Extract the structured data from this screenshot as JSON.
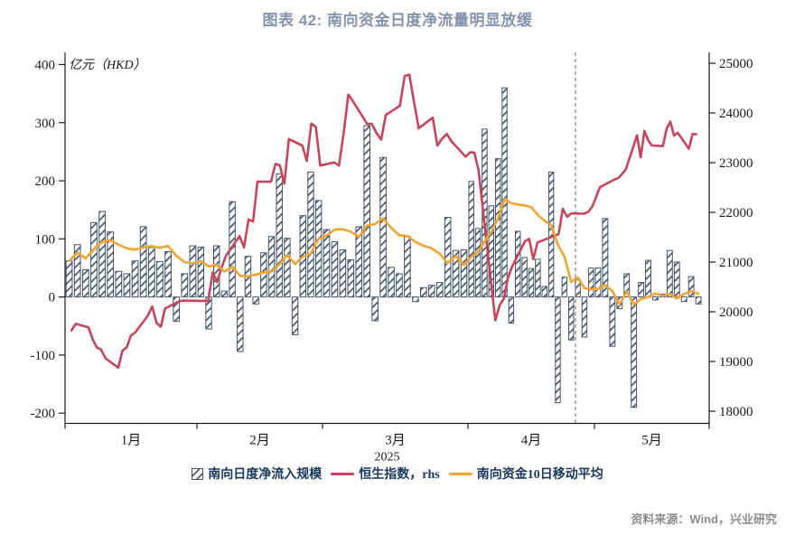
{
  "title": "图表 42: 南向资金日度净流量明显放缓",
  "source": "资料来源：Wind，兴业研究",
  "colors": {
    "title": "#8494AD",
    "bar_navy": "#44546A",
    "hsi_red": "#C5455C",
    "ma_orange": "#F3A332",
    "dashed_gray": "#808080",
    "axis_black": "#1a1a1a",
    "legend_text": "#17375E",
    "source_gray": "#8C8C8C"
  },
  "legend": [
    {
      "label": "南向日度净流入规模",
      "marker": "hatched-square"
    },
    {
      "label": "恒生指数，rhs",
      "marker": "red-line"
    },
    {
      "label": "南向资金10日移动平均",
      "marker": "orange-line"
    }
  ],
  "chart_data": {
    "type": "bar+line",
    "unit_label": "亿元（HKD）",
    "year_label": "2025",
    "left_axis": {
      "ticks": [
        400,
        300,
        200,
        100,
        0,
        -100,
        -200
      ],
      "range": [
        -200,
        400
      ]
    },
    "right_axis": {
      "ticks": [
        25000,
        24000,
        23000,
        22000,
        21000,
        20000,
        19000,
        18000
      ],
      "range": [
        18000,
        25000
      ]
    },
    "bars_series_name": "南向日度净流入规模",
    "hsi_series_name": "恒生指数，rhs",
    "ma_series_name": "南向资金10日移动平均",
    "ma_window": 10,
    "months": [
      {
        "label": "1月",
        "days_in_month": 31,
        "bars": [
          62,
          90,
          47,
          128,
          147,
          112,
          44,
          40,
          62,
          121,
          85,
          61,
          78,
          -42,
          40,
          88
        ]
      },
      {
        "label": "2月",
        "days_in_month": 28,
        "bars": [
          86,
          -55,
          88,
          10,
          164,
          -94,
          70,
          -12,
          76,
          104,
          212,
          101,
          -65,
          140,
          215,
          166
        ]
      },
      {
        "label": "3月",
        "days_in_month": 31,
        "bars": [
          116,
          95,
          81,
          64,
          121,
          295,
          -41,
          240,
          51,
          40,
          104,
          -8,
          16,
          20,
          25,
          137,
          80,
          81
        ]
      },
      {
        "label": "4月",
        "days_in_month": 30,
        "bars": [
          199,
          118,
          289,
          157,
          238,
          360,
          -45,
          113,
          68,
          49,
          65,
          18,
          215,
          -182,
          34,
          -74,
          30,
          -69,
          50
        ]
      },
      {
        "label": "5月",
        "days_in_month": 31,
        "bars": [
          50,
          135,
          -85,
          -20,
          40,
          -190,
          25,
          63,
          -5,
          5,
          80,
          60,
          -8,
          35,
          -12,
          null
        ]
      }
    ],
    "hsi_points": [
      {
        "month_index": 0,
        "pts": [
          [
            2,
            19623
          ],
          [
            3,
            19760
          ],
          [
            6,
            19688
          ],
          [
            7,
            19447
          ],
          [
            8,
            19279
          ],
          [
            9,
            19240
          ],
          [
            10,
            19064
          ],
          [
            13,
            18874
          ],
          [
            14,
            19219
          ],
          [
            15,
            19286
          ],
          [
            16,
            19523
          ],
          [
            17,
            19584
          ],
          [
            20,
            19926
          ],
          [
            21,
            20106
          ],
          [
            22,
            19778
          ],
          [
            23,
            19700
          ],
          [
            24,
            20066
          ],
          [
            27,
            20197
          ],
          [
            28,
            20225
          ]
        ]
      },
      {
        "month_index": 1,
        "pts": [
          [
            3,
            20217
          ],
          [
            4,
            20790
          ],
          [
            5,
            20597
          ],
          [
            6,
            20891
          ],
          [
            7,
            21133
          ],
          [
            10,
            21521
          ],
          [
            11,
            21295
          ],
          [
            12,
            21857
          ],
          [
            13,
            21814
          ],
          [
            14,
            22620
          ],
          [
            17,
            22616
          ],
          [
            18,
            22977
          ],
          [
            19,
            22944
          ],
          [
            20,
            22577
          ],
          [
            21,
            23477
          ],
          [
            24,
            23342
          ],
          [
            25,
            23034
          ],
          [
            26,
            23787
          ],
          [
            27,
            23718
          ],
          [
            28,
            22941
          ]
        ]
      },
      {
        "month_index": 2,
        "pts": [
          [
            3,
            23006
          ],
          [
            4,
            22942
          ],
          [
            5,
            23594
          ],
          [
            6,
            24370
          ],
          [
            7,
            24231
          ],
          [
            10,
            23783
          ],
          [
            11,
            23782
          ],
          [
            12,
            23600
          ],
          [
            13,
            23463
          ],
          [
            14,
            23960
          ],
          [
            17,
            24146
          ],
          [
            18,
            24741
          ],
          [
            19,
            24771
          ],
          [
            20,
            24220
          ],
          [
            21,
            23690
          ],
          [
            24,
            23906
          ],
          [
            25,
            23344
          ],
          [
            26,
            23483
          ],
          [
            27,
            23579
          ],
          [
            28,
            23427
          ],
          [
            31,
            23120
          ]
        ]
      },
      {
        "month_index": 3,
        "pts": [
          [
            1,
            23207
          ],
          [
            2,
            23203
          ],
          [
            3,
            22850
          ],
          [
            7,
            19828
          ],
          [
            8,
            20128
          ],
          [
            9,
            20265
          ],
          [
            10,
            20682
          ],
          [
            11,
            20915
          ],
          [
            14,
            21417
          ],
          [
            15,
            21466
          ],
          [
            16,
            21057
          ],
          [
            17,
            21395
          ],
          [
            22,
            21562
          ],
          [
            23,
            22072
          ],
          [
            24,
            21910
          ],
          [
            25,
            21980
          ],
          [
            28,
            21972
          ],
          [
            29,
            22008
          ],
          [
            30,
            22119
          ]
        ]
      },
      {
        "month_index": 4,
        "pts": [
          [
            2,
            22505
          ],
          [
            6,
            22663
          ],
          [
            7,
            22692
          ],
          [
            8,
            22776
          ],
          [
            9,
            22867
          ],
          [
            12,
            23549
          ],
          [
            13,
            23108
          ],
          [
            14,
            23640
          ],
          [
            15,
            23453
          ],
          [
            16,
            23345
          ],
          [
            19,
            23332
          ],
          [
            20,
            23681
          ],
          [
            21,
            23827
          ],
          [
            22,
            23544
          ],
          [
            23,
            23601
          ],
          [
            26,
            23282
          ],
          [
            27,
            23576
          ],
          [
            28,
            23573
          ]
        ]
      }
    ],
    "dashed_vline": {
      "month_index": 3,
      "day": 26
    }
  }
}
